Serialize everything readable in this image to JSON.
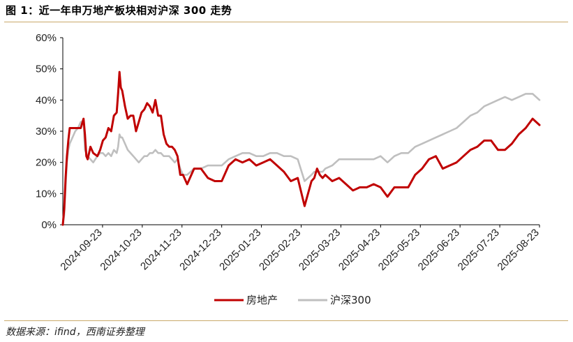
{
  "title": "图 1：近一年申万地产板块相对沪深 300 走势",
  "source": "数据来源：ifind，西南证券整理",
  "colors": {
    "series1": "#c00000",
    "series2": "#bfbfbf",
    "rule": "#c9a96a"
  },
  "chart_data": {
    "type": "line",
    "title": "近一年申万地产板块相对沪深 300 走势",
    "xlabel": "",
    "ylabel": "",
    "ylim": [
      0,
      60
    ],
    "ytick_labels": [
      "0%",
      "10%",
      "20%",
      "30%",
      "40%",
      "50%",
      "60%"
    ],
    "x_tick_labels": [
      "2024-09-23",
      "2024-10-23",
      "2024-11-23",
      "2024-12-23",
      "2025-01-23",
      "2025-02-23",
      "2025-03-23",
      "2025-04-23",
      "2025-05-23",
      "2025-06-23",
      "2025-07-23",
      "2025-08-23"
    ],
    "x_days": [
      0,
      1,
      2,
      3,
      4,
      5,
      7,
      9,
      11,
      13,
      15,
      16,
      17,
      18,
      20,
      22,
      25,
      27,
      29,
      31,
      33,
      35,
      37,
      39,
      40,
      41,
      42,
      43,
      45,
      47,
      49,
      51,
      53,
      55,
      57,
      59,
      61,
      63,
      65,
      67,
      69,
      71,
      73,
      75,
      77,
      79,
      81,
      83,
      85,
      87,
      90,
      95,
      100,
      105,
      110,
      115,
      120,
      125,
      130,
      135,
      140,
      145,
      150,
      155,
      160,
      165,
      170,
      175,
      180,
      182,
      184,
      186,
      188,
      190,
      195,
      200,
      205,
      210,
      215,
      220,
      225,
      230,
      235,
      240,
      245,
      250,
      255,
      260,
      265,
      270,
      275,
      280,
      285,
      290,
      295,
      300,
      305,
      310,
      315,
      320,
      325,
      330,
      335,
      340,
      345
    ],
    "series": [
      {
        "name": "房地产",
        "values": [
          0,
          5,
          15,
          22,
          27,
          31,
          31,
          31,
          31,
          31,
          34,
          29,
          22,
          21,
          25,
          23,
          22,
          24,
          27,
          28,
          31,
          30,
          35,
          36,
          42,
          49,
          44,
          43,
          38,
          34,
          35,
          35,
          30,
          33,
          36,
          37,
          39,
          38,
          36,
          40,
          35,
          35,
          29,
          26,
          25,
          25,
          24,
          22,
          16,
          16,
          13,
          18,
          18,
          15,
          14,
          14,
          19,
          21,
          20,
          21,
          19,
          20,
          21,
          19,
          17,
          14,
          15,
          6,
          14,
          15,
          18,
          16,
          15,
          16,
          14,
          15,
          13,
          11,
          12,
          12,
          13,
          12,
          9,
          12,
          12,
          12,
          16,
          18,
          21,
          22,
          18,
          19,
          20,
          22,
          24,
          25,
          27,
          27,
          24,
          24,
          26,
          29,
          31,
          34,
          32
        ]
      },
      {
        "name": "沪深300",
        "values": [
          0,
          3,
          12,
          20,
          24,
          26,
          28,
          30,
          31,
          33,
          33,
          24,
          23,
          22,
          21,
          20,
          22,
          23,
          23,
          22,
          23,
          22,
          24,
          23,
          25,
          29,
          28,
          28,
          26,
          24,
          23,
          22,
          21,
          20,
          21,
          22,
          22,
          23,
          23,
          24,
          23,
          23,
          22,
          22,
          22,
          21,
          20,
          21,
          18,
          16,
          16,
          18,
          18,
          19,
          19,
          19,
          21,
          22,
          23,
          23,
          22,
          22,
          23,
          23,
          22,
          22,
          21,
          14,
          16,
          17,
          17,
          17,
          17,
          18,
          19,
          21,
          21,
          21,
          21,
          21,
          21,
          22,
          20,
          22,
          23,
          23,
          25,
          26,
          27,
          28,
          29,
          30,
          31,
          33,
          35,
          36,
          38,
          39,
          40,
          41,
          40,
          41,
          42,
          42,
          40
        ]
      }
    ],
    "legend": [
      "房地产",
      "沪深300"
    ],
    "legend_position": "bottom-center",
    "grid": false
  }
}
